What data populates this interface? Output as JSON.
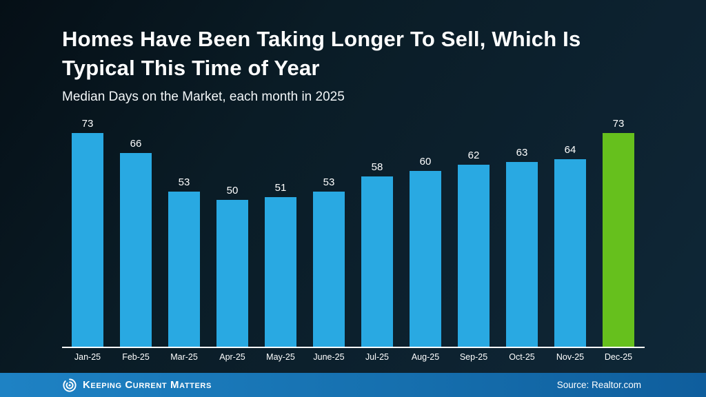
{
  "header": {
    "title": "Homes Have Been Taking Longer To Sell, Which Is\nTypical This Time of Year",
    "subtitle": "Median Days on the Market, each month in 2025"
  },
  "chart_data": {
    "type": "bar",
    "categories": [
      "Jan-25",
      "Feb-25",
      "Mar-25",
      "Apr-25",
      "May-25",
      "June-25",
      "Jul-25",
      "Aug-25",
      "Sep-25",
      "Oct-25",
      "Nov-25",
      "Dec-25"
    ],
    "values": [
      73,
      66,
      53,
      50,
      51,
      53,
      58,
      60,
      62,
      63,
      64,
      73
    ],
    "title": "Homes Have Been Taking Longer To Sell, Which Is Typical This Time of Year",
    "subtitle": "Median Days on the Market, each month in 2025",
    "xlabel": "",
    "ylabel": "",
    "ylim": [
      0,
      80
    ],
    "y_axis_visible": false,
    "grid": false,
    "data_labels": true,
    "bar_color": "#29a9e2",
    "highlight_color": "#66c01d",
    "highlight_index": 11,
    "axis_line_color": "#ffffff",
    "label_color": "#ffffff"
  },
  "footer": {
    "brand": "Keeping Current Matters",
    "source": "Source: Realtor.com"
  }
}
